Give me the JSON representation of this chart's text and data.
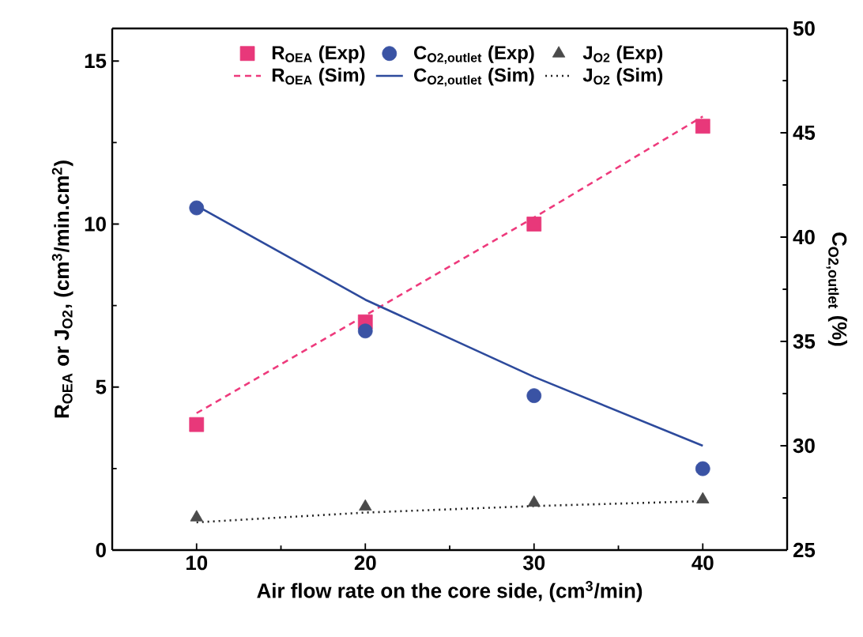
{
  "chart_data": {
    "type": "line",
    "xlabel": "Air flow rate on the core side, (cm$^{3}$/min)",
    "ylabel": "R$_{OEA}$ or J$_{O2}$, (cm$^{3}$/min.cm$^{2}$)",
    "y2label": "C$_{O2,outlet}$ (%)",
    "x": [
      10,
      20,
      30,
      40
    ],
    "xlim": [
      5,
      45
    ],
    "xticks": [
      10,
      20,
      30,
      40
    ],
    "ylim": [
      0,
      16
    ],
    "yticks": [
      0,
      5,
      10,
      15
    ],
    "y2lim": [
      25,
      50
    ],
    "y2ticks": [
      25,
      30,
      35,
      40,
      45,
      50
    ],
    "legend": "top",
    "series": [
      {
        "name": "R$_{OEA}$ (Exp)",
        "type": "scatter",
        "marker": "square",
        "color": "#e8387a",
        "values": [
          3.85,
          7.0,
          10.0,
          13.0
        ]
      },
      {
        "name": "C$_{O2,outlet}$ (Exp)",
        "type": "scatter",
        "marker": "circle",
        "color": "#3a53a4",
        "axis": "y2",
        "values": [
          41.4,
          35.5,
          32.4,
          28.9
        ]
      },
      {
        "name": "J$_{O2}$ (Exp)",
        "type": "scatter",
        "marker": "triangle",
        "color": "#4a4a4a",
        "values": [
          1.0,
          1.33,
          1.45,
          1.55
        ]
      },
      {
        "name": "R$_{OEA}$ (Sim)",
        "line_style": "dashed",
        "color": "#ee3a7c",
        "values": [
          4.2,
          7.2,
          10.2,
          13.3
        ]
      },
      {
        "name": "C$_{O2,outlet}$ (Sim)",
        "line_style": "solid",
        "color": "#2d4a9c",
        "axis": "y2",
        "values": [
          41.5,
          37.0,
          33.3,
          30.0
        ]
      },
      {
        "name": "J$_{O2}$ (Sim)",
        "line_style": "dotted",
        "color": "#222222",
        "values": [
          0.85,
          1.15,
          1.35,
          1.5
        ]
      }
    ]
  }
}
